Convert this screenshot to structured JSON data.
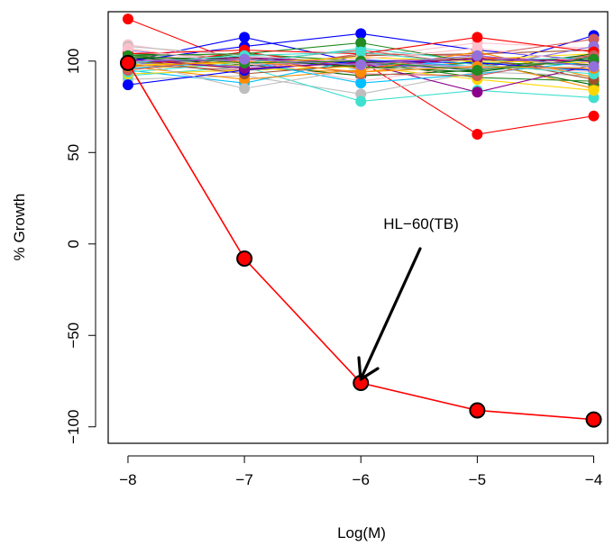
{
  "chart_data": {
    "type": "line",
    "title": "",
    "xlabel": "Log(M)",
    "ylabel": "% Growth",
    "x": [
      -8,
      -7,
      -6,
      -5,
      -4
    ],
    "xlim": [
      -8.17,
      -3.88
    ],
    "ylim": [
      -109,
      127
    ],
    "xticks": [
      -8,
      -7,
      -6,
      -5,
      -4
    ],
    "xtick_labels": [
      "−8",
      "−7",
      "−6",
      "−5",
      "−4"
    ],
    "yticks": [
      100,
      50,
      0,
      -50,
      -100
    ],
    "ytick_labels": [
      "100",
      "50",
      "0",
      "−50",
      "−100"
    ],
    "grid": false,
    "legend": "none",
    "highlight_series": {
      "name": "HL-60(TB)",
      "values": [
        99,
        -8,
        -76,
        -91,
        -96
      ],
      "color": "#ff0000"
    },
    "annotation": {
      "text": "HL−60(TB)",
      "points_to": [
        -6,
        -76
      ]
    },
    "background_series_colors": [
      "#ff0000",
      "#0000ff",
      "#006400",
      "#ffd700",
      "#bebebe",
      "#cd5c5c",
      "#ffc0cb",
      "#40e0d0",
      "#8b008b",
      "#ff8c00",
      "#228b22",
      "#9370db",
      "#a0522d",
      "#00bfff"
    ],
    "background_series": [
      {
        "values": [
          123,
          98,
          100,
          60,
          70
        ]
      },
      {
        "values": [
          100,
          113,
          99,
          95,
          114
        ]
      },
      {
        "values": [
          104,
          102,
          96,
          99,
          87
        ]
      },
      {
        "values": [
          96,
          98,
          99,
          101,
          104
        ]
      },
      {
        "values": [
          90,
          92,
          82,
          94,
          92
        ]
      },
      {
        "values": [
          103,
          100,
          106,
          98,
          103
        ]
      },
      {
        "values": [
          109,
          100,
          102,
          110,
          107
        ]
      },
      {
        "values": [
          92,
          97,
          78,
          84,
          80
        ]
      },
      {
        "values": [
          99,
          101,
          100,
          101,
          98
        ]
      },
      {
        "values": [
          100,
          96,
          94,
          100,
          85
        ]
      },
      {
        "values": [
          98,
          104,
          100,
          91,
          89
        ]
      },
      {
        "values": [
          106,
          99,
          98,
          96,
          101
        ]
      },
      {
        "values": [
          101,
          97,
          103,
          104,
          106
        ]
      },
      {
        "values": [
          95,
          88,
          101,
          97,
          95
        ]
      },
      {
        "values": [
          97,
          105,
          96,
          102,
          100
        ]
      },
      {
        "values": [
          100,
          108,
          115,
          106,
          100
        ]
      },
      {
        "values": [
          102,
          98,
          92,
          95,
          104
        ]
      },
      {
        "values": [
          93,
          95,
          97,
          90,
          84
        ]
      },
      {
        "values": [
          108,
          103,
          99,
          97,
          96
        ]
      },
      {
        "values": [
          98,
          95,
          104,
          103,
          112
        ]
      },
      {
        "values": [
          105,
          101,
          89,
          98,
          94
        ]
      },
      {
        "values": [
          94,
          99,
          107,
          100,
          102
        ]
      },
      {
        "values": [
          100,
          102,
          99,
          83,
          98
        ]
      },
      {
        "values": [
          97,
          90,
          95,
          105,
          91
        ]
      },
      {
        "values": [
          103,
          104,
          110,
          99,
          98
        ]
      },
      {
        "values": [
          99,
          97,
          101,
          96,
          108
        ]
      },
      {
        "values": [
          101,
          93,
          98,
          102,
          90
        ]
      },
      {
        "values": [
          96,
          100,
          88,
          93,
          100
        ]
      },
      {
        "values": [
          104,
          106,
          104,
          113,
          105
        ]
      },
      {
        "values": [
          87,
          95,
          100,
          99,
          95
        ]
      },
      {
        "values": [
          102,
          101,
          97,
          94,
          102
        ]
      },
      {
        "values": [
          98,
          99,
          102,
          100,
          99
        ]
      },
      {
        "values": [
          100,
          85,
          96,
          96,
          97
        ]
      },
      {
        "values": [
          95,
          102,
          93,
          92,
          103
        ]
      },
      {
        "values": [
          107,
          98,
          101,
          107,
          99
        ]
      },
      {
        "values": [
          99,
          103,
          105,
          98,
          93
        ]
      },
      {
        "values": [
          101,
          96,
          99,
          101,
          100
        ]
      },
      {
        "values": [
          97,
          100,
          94,
          97,
          96
        ]
      },
      {
        "values": [
          103,
          99,
          100,
          95,
          101
        ]
      },
      {
        "values": [
          100,
          101,
          98,
          103,
          97
        ]
      }
    ]
  }
}
